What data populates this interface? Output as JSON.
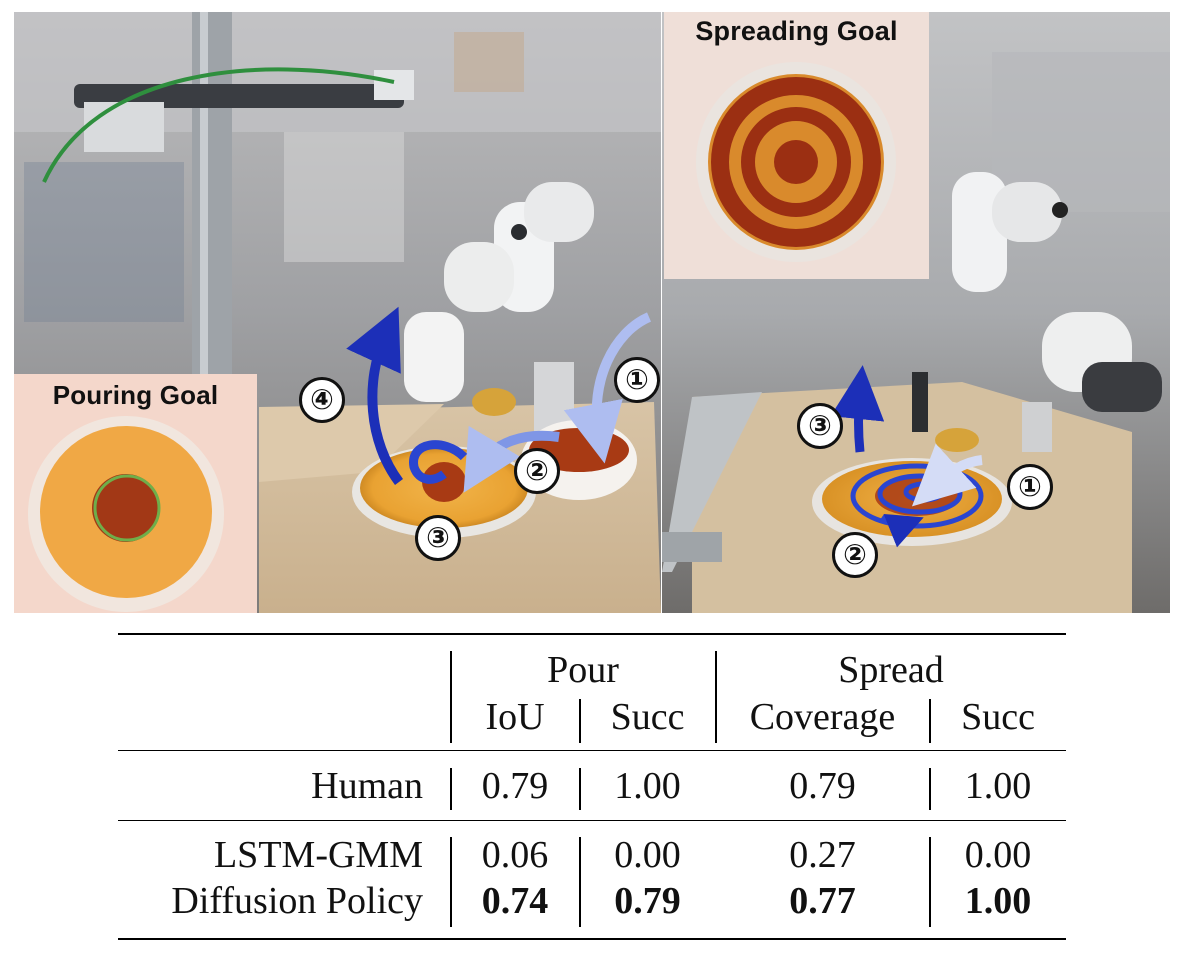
{
  "figure": {
    "inset_spreading_title": "Spreading Goal",
    "inset_pouring_title": "Pouring Goal",
    "pour_steps": [
      "①",
      "②",
      "③",
      "④"
    ],
    "spread_steps": [
      "①",
      "②",
      "③"
    ]
  },
  "table": {
    "group_headers": [
      "Pour",
      "Spread"
    ],
    "sub_headers": [
      "IoU",
      "Succ",
      "Coverage",
      "Succ"
    ],
    "rows": [
      {
        "label": "Human",
        "values": [
          "0.79",
          "1.00",
          "0.79",
          "1.00"
        ],
        "bold": [
          false,
          false,
          false,
          false
        ]
      },
      {
        "label": "LSTM-GMM",
        "values": [
          "0.06",
          "0.00",
          "0.27",
          "0.00"
        ],
        "bold": [
          false,
          false,
          false,
          false
        ]
      },
      {
        "label": "Diffusion Policy",
        "values": [
          "0.74",
          "0.79",
          "0.77",
          "1.00"
        ],
        "bold": [
          true,
          true,
          true,
          true
        ]
      }
    ]
  },
  "colors": {
    "sauce": "#a83a14",
    "plate": "#f0a838",
    "arrow_dark": "#1c2fb8",
    "arrow_light": "#b9c6f2",
    "goal_circle": "#6fae4a"
  }
}
